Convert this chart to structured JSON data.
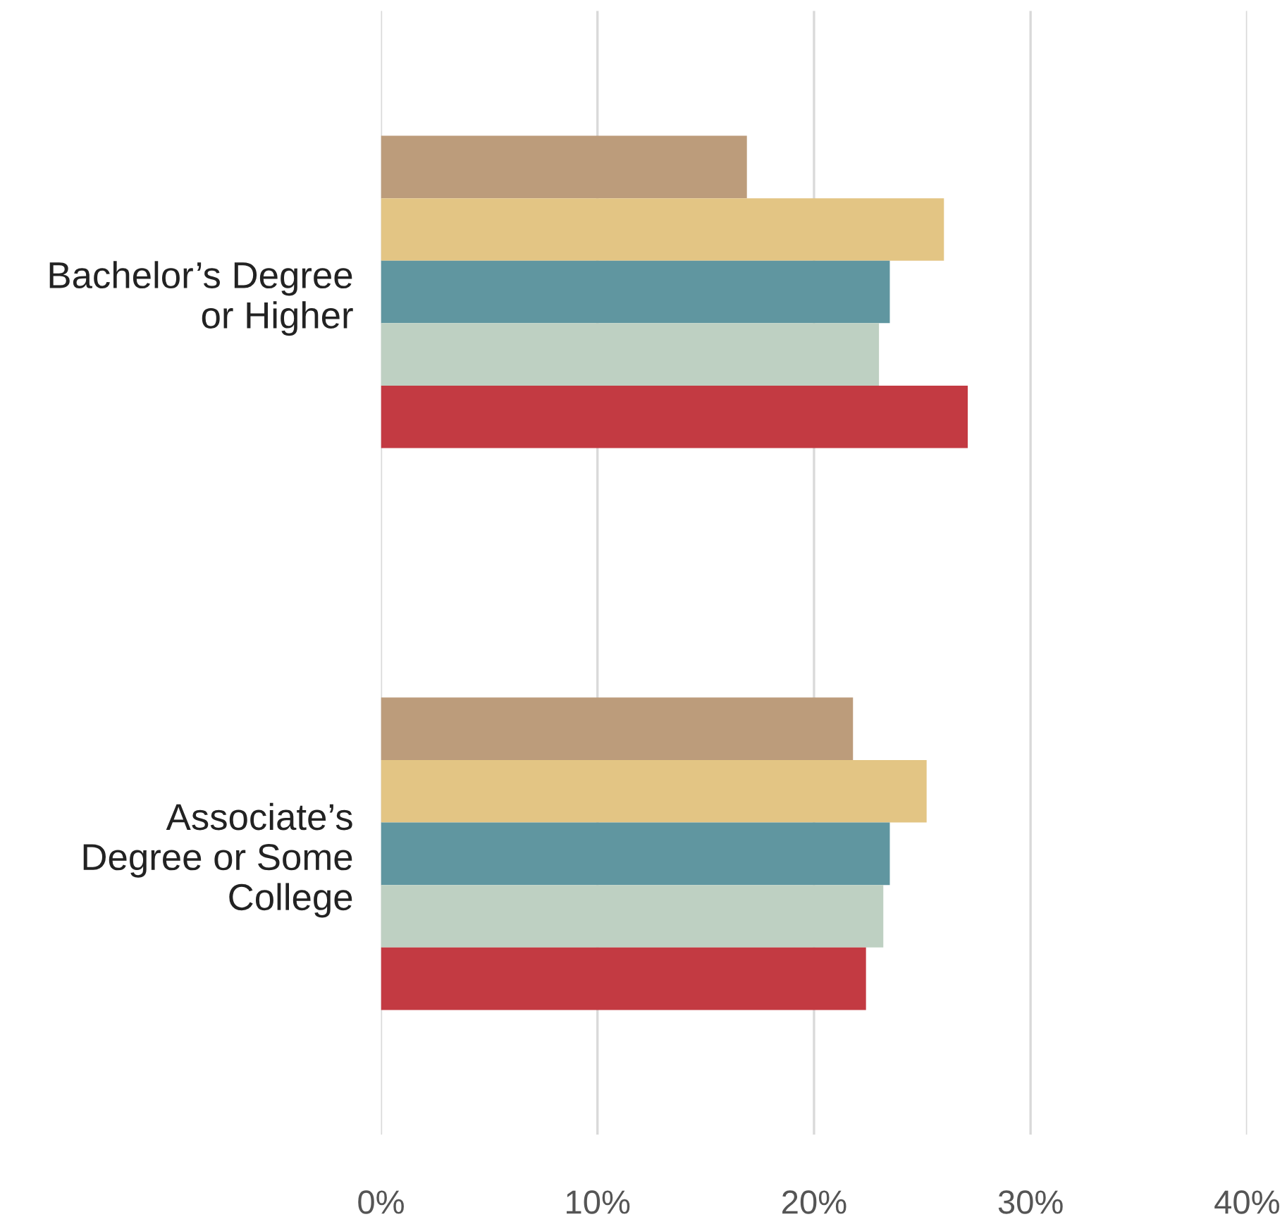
{
  "chart_data": {
    "type": "bar",
    "orientation": "horizontal",
    "categories": [
      "Bachelor’s Degree or Higher",
      "Associate’s Degree or Some College"
    ],
    "series": [
      {
        "color": "#bc9c7b",
        "values": [
          16.9,
          21.8
        ]
      },
      {
        "color": "#e3c584",
        "values": [
          26.0,
          25.2
        ]
      },
      {
        "color": "#6096a0",
        "values": [
          23.5,
          23.5
        ]
      },
      {
        "color": "#bed0c2",
        "values": [
          23.0,
          23.2
        ]
      },
      {
        "color": "#c33a42",
        "values": [
          27.1,
          22.4
        ]
      }
    ],
    "xlim": [
      0,
      40
    ],
    "xticks": [
      {
        "value": 0,
        "label": "0%"
      },
      {
        "value": 10,
        "label": "10%"
      },
      {
        "value": 20,
        "label": "20%"
      },
      {
        "value": 30,
        "label": "30%"
      },
      {
        "value": 40,
        "label": "40%"
      }
    ],
    "grid": "x",
    "legend": false
  }
}
